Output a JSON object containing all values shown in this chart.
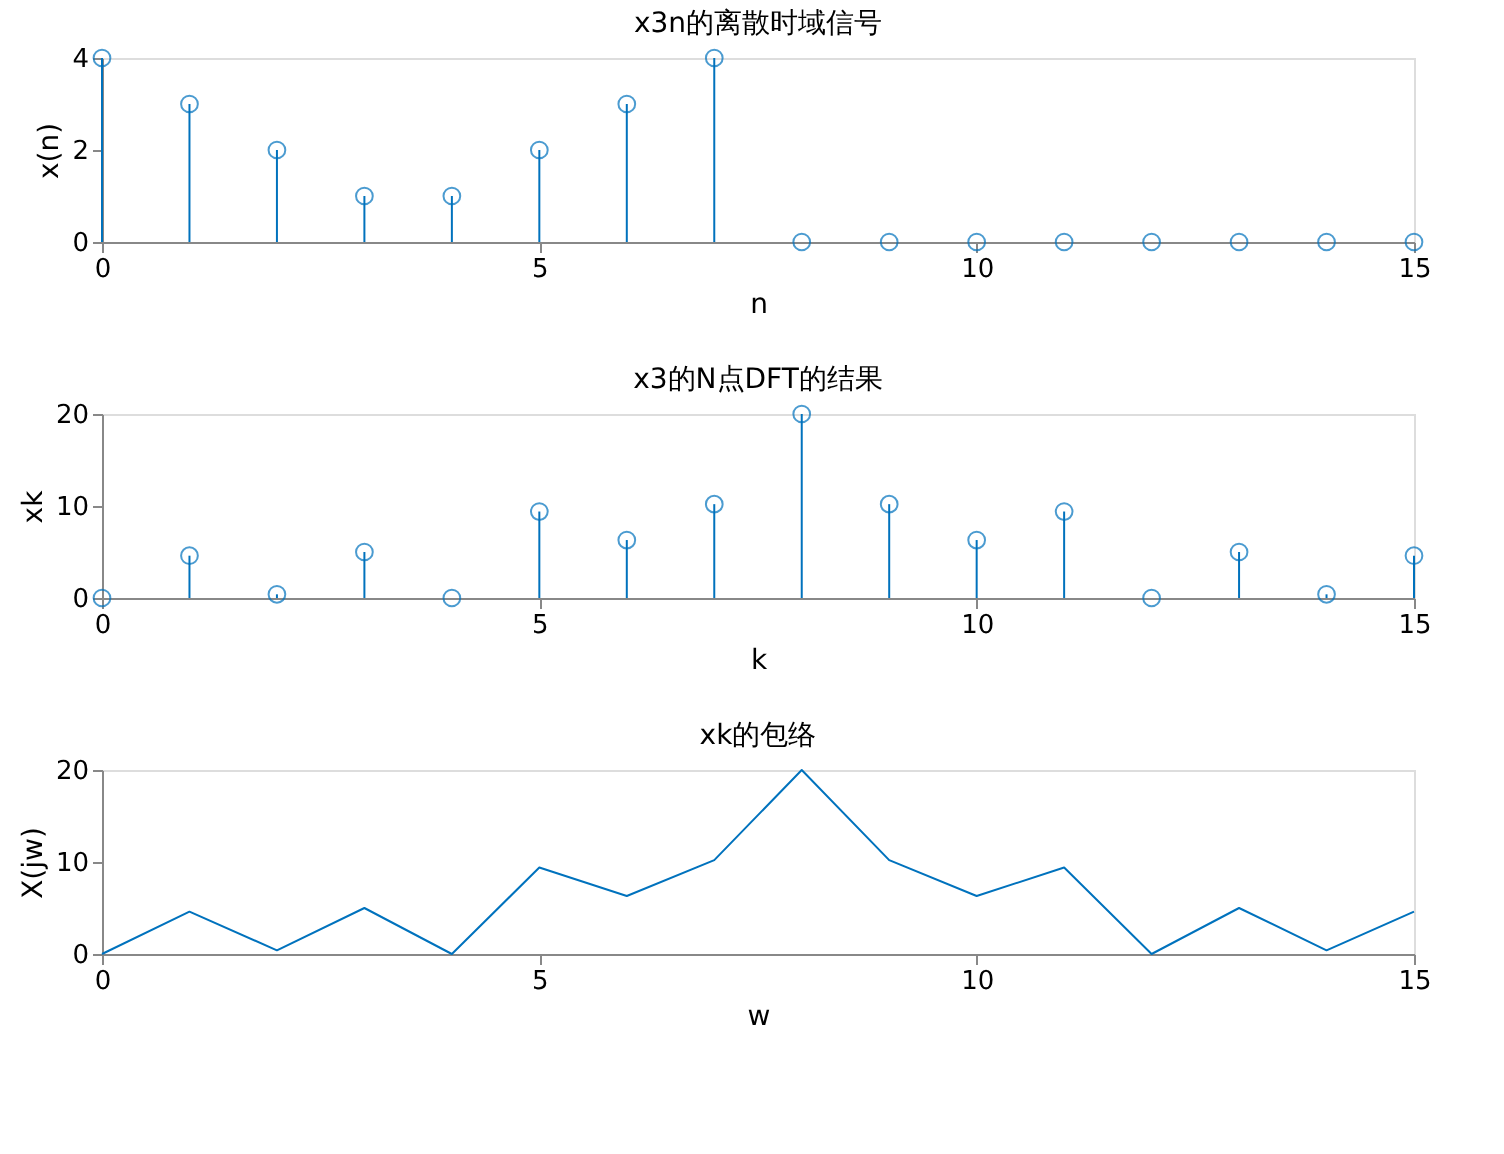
{
  "chart_data": [
    {
      "type": "lollipop",
      "title": "x3n的离散时域信号",
      "xlabel": "n",
      "ylabel": "x(n)",
      "x": [
        0,
        1,
        2,
        3,
        4,
        5,
        6,
        7,
        8,
        9,
        10,
        11,
        12,
        13,
        14,
        15
      ],
      "series": [
        {
          "color": "#0072bd",
          "values": [
            4,
            3,
            2,
            1,
            1,
            2,
            3,
            4,
            0,
            0,
            0,
            0,
            0,
            0,
            0,
            0
          ]
        }
      ],
      "xlim": [
        0,
        15
      ],
      "xticks": [
        0,
        5,
        10,
        15
      ],
      "ylim": [
        0,
        4
      ],
      "yticks": [
        0,
        2,
        4
      ],
      "marker": "circle",
      "grid": false
    },
    {
      "type": "lollipop",
      "title": "x3的N点DFT的结果",
      "xlabel": "k",
      "ylabel": "xk",
      "x": [
        0,
        1,
        2,
        3,
        4,
        5,
        6,
        7,
        8,
        9,
        10,
        11,
        12,
        13,
        14,
        15
      ],
      "series": [
        {
          "color": "#0072bd",
          "values": [
            0,
            4.6,
            0.4,
            5.0,
            0,
            9.4,
            6.3,
            10.2,
            20,
            10.2,
            6.3,
            9.4,
            0,
            5.0,
            0.4,
            4.6
          ]
        }
      ],
      "xlim": [
        0,
        15
      ],
      "xticks": [
        0,
        5,
        10,
        15
      ],
      "ylim": [
        0,
        20
      ],
      "yticks": [
        0,
        10,
        20
      ],
      "marker": "circle",
      "grid": false
    },
    {
      "type": "line",
      "title": "xk的包络",
      "xlabel": "w",
      "ylabel": "X(jw)",
      "x": [
        0,
        1,
        2,
        3,
        4,
        5,
        6,
        7,
        8,
        9,
        10,
        11,
        12,
        13,
        14,
        15
      ],
      "series": [
        {
          "color": "#0072bd",
          "values": [
            0,
            4.6,
            0.4,
            5.0,
            0,
            9.4,
            6.3,
            10.2,
            20,
            10.2,
            6.3,
            9.4,
            0,
            5.0,
            0.4,
            4.6
          ]
        }
      ],
      "xlim": [
        0,
        15
      ],
      "xticks": [
        0,
        5,
        10,
        15
      ],
      "ylim": [
        0,
        20
      ],
      "yticks": [
        0,
        10,
        20
      ],
      "marker": "none",
      "line_style": "solid",
      "grid": false
    }
  ]
}
